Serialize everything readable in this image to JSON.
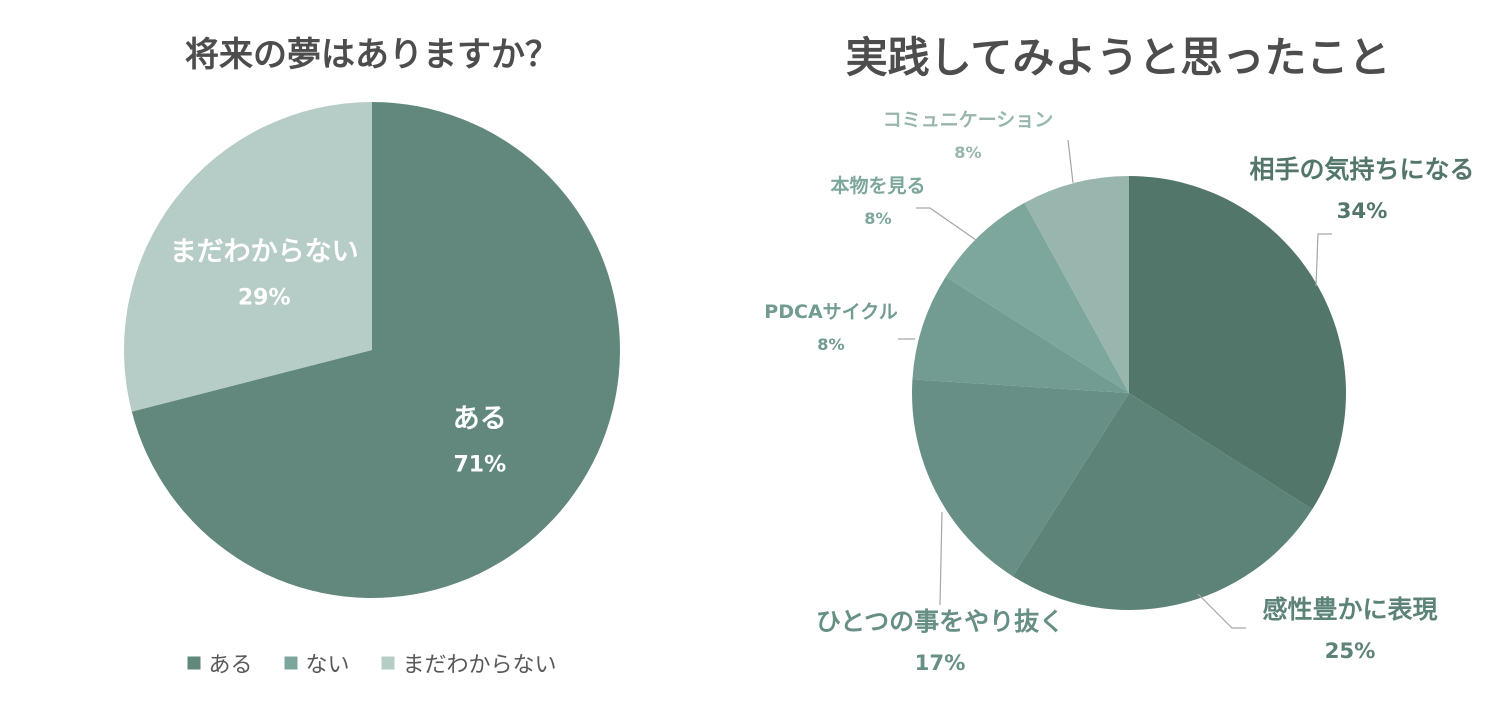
{
  "chart_data": [
    {
      "type": "pie",
      "title": "将来の夢はありますか？",
      "slices": [
        {
          "label": "ある",
          "value": 71,
          "value_label": "71%",
          "color": "#62887d"
        },
        {
          "label": "ない",
          "value": 0,
          "value_label": "",
          "color": "#7ca59c"
        },
        {
          "label": "まだわからない",
          "value": 29,
          "value_label": "29%",
          "color": "#b6ccc6"
        }
      ],
      "legend": {
        "position": "bottom",
        "items": [
          {
            "label": "ある",
            "color": "#62887d"
          },
          {
            "label": "ない",
            "color": "#7ca59c"
          },
          {
            "label": "まだわからない",
            "color": "#b6ccc6"
          }
        ]
      }
    },
    {
      "type": "pie",
      "title": "実践してみようと思ったこと",
      "slices": [
        {
          "label": "相手の気持ちになる",
          "value": 34,
          "value_label": "34%",
          "color": "#53766b"
        },
        {
          "label": "感性豊かに表現",
          "value": 25,
          "value_label": "25%",
          "color": "#5d8378"
        },
        {
          "label": "ひとつの事をやり抜く",
          "value": 17,
          "value_label": "17%",
          "color": "#678f85"
        },
        {
          "label": "PDCAサイクル",
          "value": 8,
          "value_label": "8%",
          "color": "#729b91"
        },
        {
          "label": "本物を見る",
          "value": 8,
          "value_label": "8%",
          "color": "#7da69d"
        },
        {
          "label": "コミュニケーション",
          "value": 8,
          "value_label": "8%",
          "color": "#98b6ae"
        }
      ]
    }
  ]
}
